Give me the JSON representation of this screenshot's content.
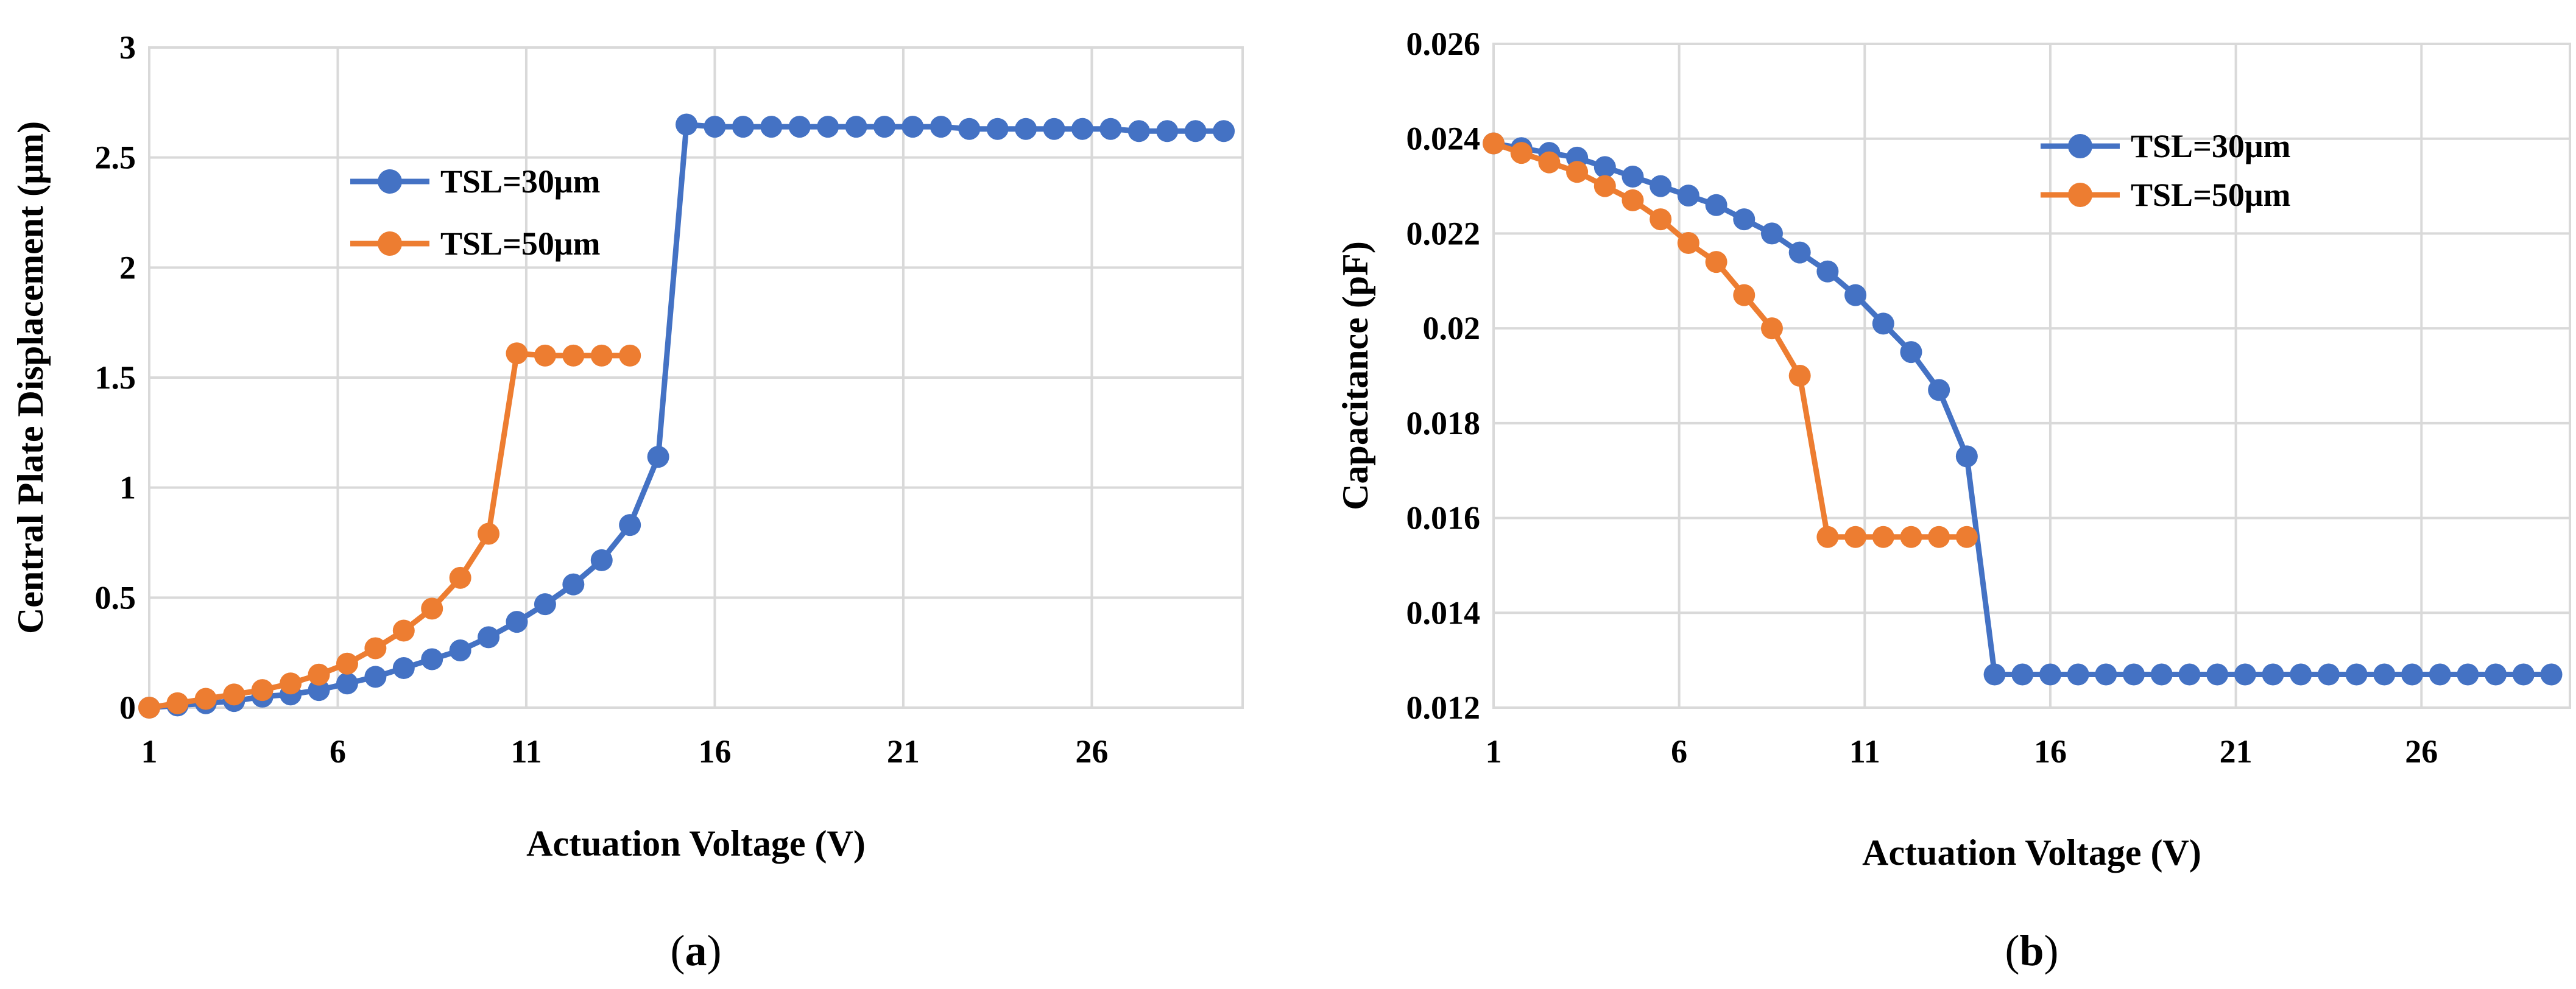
{
  "chart_data": [
    {
      "type": "line",
      "panel_label": "a",
      "title": "",
      "xlabel": "Actuation Voltage (V)",
      "ylabel": "Central Plate Displacement (μm)",
      "xlim": [
        1,
        30
      ],
      "ylim": [
        0,
        3
      ],
      "xticks": [
        1,
        6,
        11,
        16,
        21,
        26
      ],
      "xtick_labels": [
        "1",
        "6",
        "11",
        "16",
        "21",
        "26"
      ],
      "yticks": [
        0,
        0.5,
        1,
        1.5,
        2,
        2.5,
        3
      ],
      "ytick_labels": [
        "0",
        "0.5",
        "1",
        "1.5",
        "2",
        "2.5",
        "3"
      ],
      "grid": true,
      "legend": "upper-left",
      "series": [
        {
          "name": "TSL=30μm",
          "color": "#4472C4",
          "x": [
            1.0,
            1.75,
            2.5,
            3.25,
            4.0,
            4.75,
            5.5,
            6.25,
            7.0,
            7.75,
            8.5,
            9.25,
            10.0,
            10.75,
            11.5,
            12.25,
            13.0,
            13.75,
            14.5,
            15.25,
            16.0,
            16.75,
            17.5,
            18.25,
            19.0,
            19.75,
            20.5,
            21.25,
            22.0,
            22.75,
            23.5,
            24.25,
            25.0,
            25.75,
            26.5,
            27.25,
            28.0,
            28.75,
            29.5
          ],
          "y": [
            0.0,
            0.01,
            0.02,
            0.03,
            0.05,
            0.06,
            0.08,
            0.11,
            0.14,
            0.18,
            0.22,
            0.26,
            0.32,
            0.39,
            0.47,
            0.56,
            0.67,
            0.83,
            1.14,
            2.65,
            2.64,
            2.64,
            2.64,
            2.64,
            2.64,
            2.64,
            2.64,
            2.64,
            2.64,
            2.63,
            2.63,
            2.63,
            2.63,
            2.63,
            2.63,
            2.62,
            2.62,
            2.62,
            2.62
          ]
        },
        {
          "name": "TSL=50μm",
          "color": "#ED7D31",
          "x": [
            1.0,
            1.75,
            2.5,
            3.25,
            4.0,
            4.75,
            5.5,
            6.25,
            7.0,
            7.75,
            8.5,
            9.25,
            10.0,
            10.75,
            11.5,
            12.25,
            13.0,
            13.75
          ],
          "y": [
            0.0,
            0.02,
            0.04,
            0.06,
            0.08,
            0.11,
            0.15,
            0.2,
            0.27,
            0.35,
            0.45,
            0.59,
            0.79,
            1.61,
            1.6,
            1.6,
            1.6,
            1.6
          ]
        }
      ]
    },
    {
      "type": "line",
      "panel_label": "b",
      "title": "",
      "xlabel": "Actuation Voltage (V)",
      "ylabel": "Capacitance (pF)",
      "xlim": [
        1,
        30
      ],
      "ylim": [
        0.012,
        0.026
      ],
      "xticks": [
        1,
        6,
        11,
        16,
        21,
        26
      ],
      "xtick_labels": [
        "1",
        "6",
        "11",
        "16",
        "21",
        "26"
      ],
      "yticks": [
        0.012,
        0.014,
        0.016,
        0.018,
        0.02,
        0.022,
        0.024,
        0.026
      ],
      "ytick_labels": [
        "0.012",
        "0.014",
        "0.016",
        "0.018",
        "0.02",
        "0.022",
        "0.024",
        "0.026"
      ],
      "grid": true,
      "legend": "upper-right",
      "series": [
        {
          "name": "TSL=30μm",
          "color": "#4472C4",
          "x": [
            1.0,
            1.75,
            2.5,
            3.25,
            4.0,
            4.75,
            5.5,
            6.25,
            7.0,
            7.75,
            8.5,
            9.25,
            10.0,
            10.75,
            11.5,
            12.25,
            13.0,
            13.75,
            14.5,
            15.25,
            16.0,
            16.75,
            17.5,
            18.25,
            19.0,
            19.75,
            20.5,
            21.25,
            22.0,
            22.75,
            23.5,
            24.25,
            25.0,
            25.75,
            26.5,
            27.25,
            28.0,
            28.75,
            29.5
          ],
          "y": [
            0.0239,
            0.0238,
            0.0237,
            0.0236,
            0.0234,
            0.0232,
            0.023,
            0.0228,
            0.0226,
            0.0223,
            0.022,
            0.0216,
            0.0212,
            0.0207,
            0.0201,
            0.0195,
            0.0187,
            0.0173,
            0.0127,
            0.0127,
            0.0127,
            0.0127,
            0.0127,
            0.0127,
            0.0127,
            0.0127,
            0.0127,
            0.0127,
            0.0127,
            0.0127,
            0.0127,
            0.0127,
            0.0127,
            0.0127,
            0.0127,
            0.0127,
            0.0127,
            0.0127,
            0.0127
          ]
        },
        {
          "name": "TSL=50μm",
          "color": "#ED7D31",
          "x": [
            1.0,
            1.75,
            2.5,
            3.25,
            4.0,
            4.75,
            5.5,
            6.25,
            7.0,
            7.75,
            8.5,
            9.25,
            10.0,
            10.75,
            11.5,
            12.25,
            13.0,
            13.75
          ],
          "y": [
            0.0239,
            0.0237,
            0.0235,
            0.0233,
            0.023,
            0.0227,
            0.0223,
            0.0218,
            0.0214,
            0.0207,
            0.02,
            0.019,
            0.0156,
            0.0156,
            0.0156,
            0.0156,
            0.0156,
            0.0156
          ]
        }
      ]
    }
  ]
}
